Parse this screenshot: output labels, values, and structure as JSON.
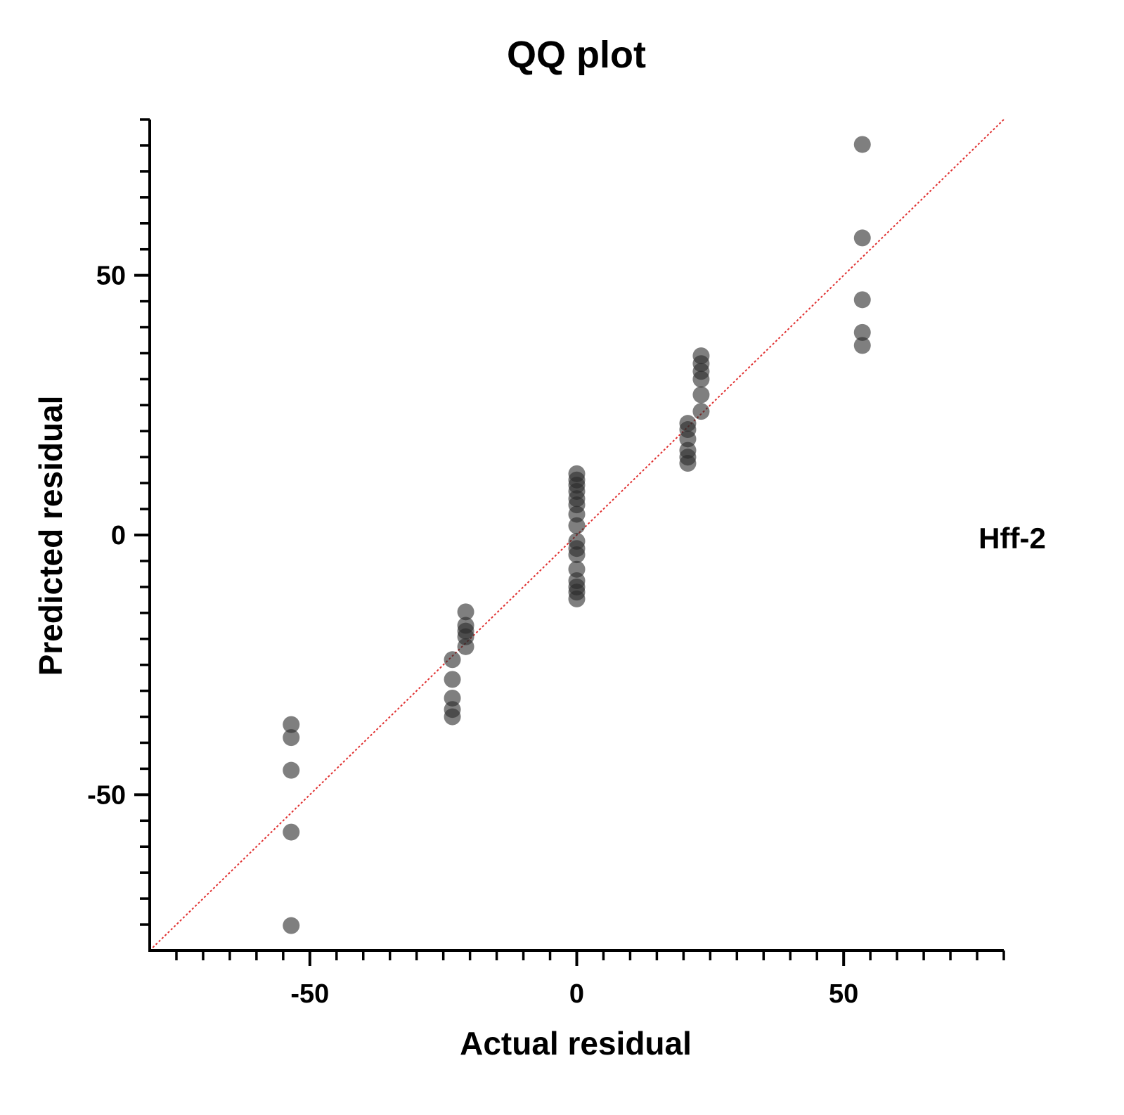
{
  "chart_data": {
    "type": "scatter",
    "title": "QQ plot",
    "xlabel": "Actual residual",
    "ylabel": "Predicted residual",
    "xlim": [
      -80,
      80
    ],
    "ylim": [
      -80,
      80
    ],
    "x_ticks": [
      -50,
      0,
      50
    ],
    "y_ticks": [
      -50,
      0,
      50
    ],
    "x_tick_labels": [
      "-50",
      "0",
      "50"
    ],
    "y_tick_labels": [
      "-50",
      "0",
      "50"
    ],
    "grid": false,
    "series_label": "Hff-2",
    "reference_line": {
      "style": "dotted",
      "color": "#e03030",
      "from": [
        -80,
        -80
      ],
      "to": [
        80,
        80
      ]
    },
    "marker_color": "#2a2a2a",
    "points": [
      {
        "x": 53.5,
        "y": 75.2
      },
      {
        "x": 53.5,
        "y": 57.2
      },
      {
        "x": 53.5,
        "y": 45.3
      },
      {
        "x": 53.5,
        "y": 39.0
      },
      {
        "x": 53.5,
        "y": 36.5
      },
      {
        "x": 23.3,
        "y": 34.5
      },
      {
        "x": 23.3,
        "y": 33.0
      },
      {
        "x": 23.3,
        "y": 31.5
      },
      {
        "x": 23.3,
        "y": 30.0
      },
      {
        "x": 23.3,
        "y": 27.0
      },
      {
        "x": 23.3,
        "y": 23.8
      },
      {
        "x": 20.8,
        "y": 21.5
      },
      {
        "x": 20.8,
        "y": 20.3
      },
      {
        "x": 20.8,
        "y": 18.5
      },
      {
        "x": 20.8,
        "y": 16.3
      },
      {
        "x": 20.8,
        "y": 15.0
      },
      {
        "x": 20.8,
        "y": 13.8
      },
      {
        "x": 0.0,
        "y": 11.8
      },
      {
        "x": 0.0,
        "y": 10.6
      },
      {
        "x": 0.0,
        "y": 9.6
      },
      {
        "x": 0.0,
        "y": 8.4
      },
      {
        "x": 0.0,
        "y": 7.0
      },
      {
        "x": 0.0,
        "y": 5.8
      },
      {
        "x": 0.0,
        "y": 4.0
      },
      {
        "x": 0.0,
        "y": 1.8
      },
      {
        "x": 0.0,
        "y": -1.2
      },
      {
        "x": 0.0,
        "y": -2.6
      },
      {
        "x": 0.0,
        "y": -3.8
      },
      {
        "x": 0.0,
        "y": -6.6
      },
      {
        "x": 0.0,
        "y": -8.8
      },
      {
        "x": 0.0,
        "y": -10.0
      },
      {
        "x": 0.0,
        "y": -11.0
      },
      {
        "x": 0.0,
        "y": -12.3
      },
      {
        "x": -20.8,
        "y": -14.8
      },
      {
        "x": -20.8,
        "y": -17.4
      },
      {
        "x": -20.8,
        "y": -18.5
      },
      {
        "x": -20.8,
        "y": -19.6
      },
      {
        "x": -20.8,
        "y": -21.5
      },
      {
        "x": -23.3,
        "y": -24.0
      },
      {
        "x": -23.3,
        "y": -27.8
      },
      {
        "x": -23.3,
        "y": -31.4
      },
      {
        "x": -23.3,
        "y": -33.6
      },
      {
        "x": -23.3,
        "y": -35.0
      },
      {
        "x": -53.5,
        "y": -36.5
      },
      {
        "x": -53.5,
        "y": -39.0
      },
      {
        "x": -53.5,
        "y": -45.3
      },
      {
        "x": -53.5,
        "y": -57.2
      },
      {
        "x": -53.5,
        "y": -75.2
      }
    ]
  }
}
